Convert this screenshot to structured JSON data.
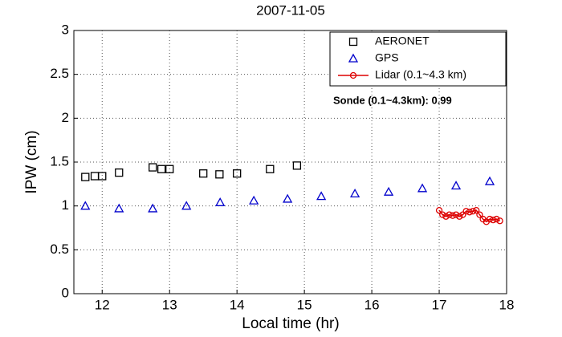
{
  "chart_data": {
    "type": "scatter",
    "title": "2007-11-05",
    "xlabel": "Local time (hr)",
    "ylabel": "IPW (cm)",
    "annotation": "Sonde (0.1~4.3km): 0.99",
    "xlim": [
      11.58,
      18
    ],
    "xticks": [
      12,
      13,
      14,
      15,
      16,
      17,
      18
    ],
    "ylim": [
      0,
      3
    ],
    "yticks": [
      0,
      0.5,
      1,
      1.5,
      2,
      2.5,
      3
    ],
    "grid": true,
    "legend": "upper right",
    "series": [
      {
        "name": "AERONET",
        "color": "#000000",
        "marker": "square",
        "line": false,
        "x": [
          11.75,
          11.89,
          12.0,
          12.25,
          12.75,
          12.88,
          13.0,
          13.5,
          13.74,
          14.0,
          14.49,
          14.89
        ],
        "values": [
          1.33,
          1.34,
          1.34,
          1.38,
          1.44,
          1.42,
          1.42,
          1.37,
          1.36,
          1.37,
          1.42,
          1.46
        ]
      },
      {
        "name": "GPS",
        "color": "#0000cc",
        "marker": "triangle",
        "line": false,
        "x": [
          11.75,
          12.25,
          12.75,
          13.25,
          13.75,
          14.25,
          14.75,
          15.25,
          15.75,
          16.25,
          16.75,
          17.25,
          17.75
        ],
        "values": [
          1.0,
          0.97,
          0.97,
          1.0,
          1.04,
          1.06,
          1.08,
          1.11,
          1.14,
          1.16,
          1.2,
          1.23,
          1.28
        ]
      },
      {
        "name": "Lidar (0.1~4.3 km)",
        "color": "#dd0000",
        "marker": "circle",
        "line": true,
        "x": [
          17.0,
          17.05,
          17.1,
          17.15,
          17.2,
          17.25,
          17.3,
          17.35,
          17.4,
          17.45,
          17.5,
          17.55,
          17.6,
          17.65,
          17.7,
          17.75,
          17.8,
          17.85,
          17.9
        ],
        "values": [
          0.95,
          0.9,
          0.88,
          0.9,
          0.89,
          0.9,
          0.88,
          0.9,
          0.94,
          0.93,
          0.94,
          0.95,
          0.9,
          0.85,
          0.82,
          0.85,
          0.84,
          0.85,
          0.83
        ]
      }
    ]
  }
}
